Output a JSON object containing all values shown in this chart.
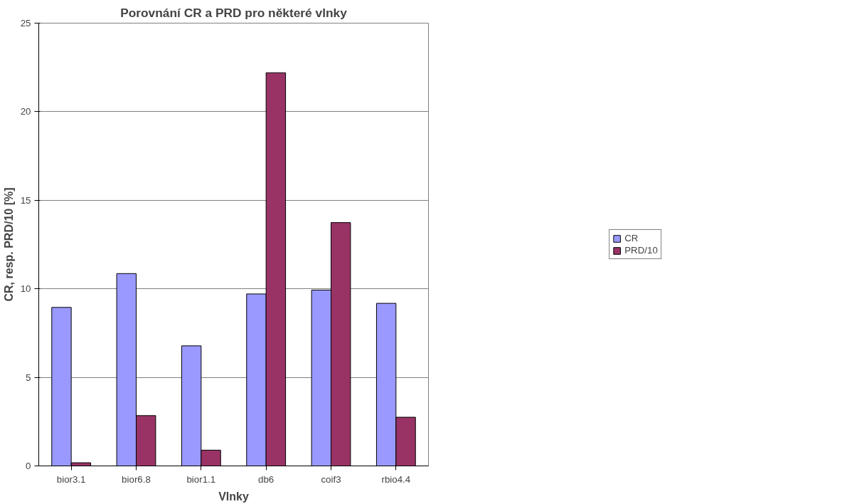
{
  "chart_data": {
    "type": "bar",
    "title": "Porovnání CR a PRD pro některé vlnky",
    "xlabel": "Vlnky",
    "ylabel": "CR, resp. PRD/10 [%]",
    "categories": [
      "bior3.1",
      "bior6.8",
      "bior1.1",
      "db6",
      "coif3",
      "rbio4.4"
    ],
    "series": [
      {
        "name": "CR",
        "color": "#9999ff",
        "values": [
          8.95,
          10.86,
          6.78,
          9.71,
          9.93,
          9.18
        ]
      },
      {
        "name": "PRD/10",
        "color": "#993366",
        "values": [
          0.18,
          2.84,
          0.89,
          22.2,
          13.74,
          2.75
        ]
      }
    ],
    "ylim": [
      0,
      25
    ],
    "yticks": [
      0,
      5,
      10,
      15,
      20,
      25
    ],
    "grid": "y",
    "legend": "right"
  }
}
